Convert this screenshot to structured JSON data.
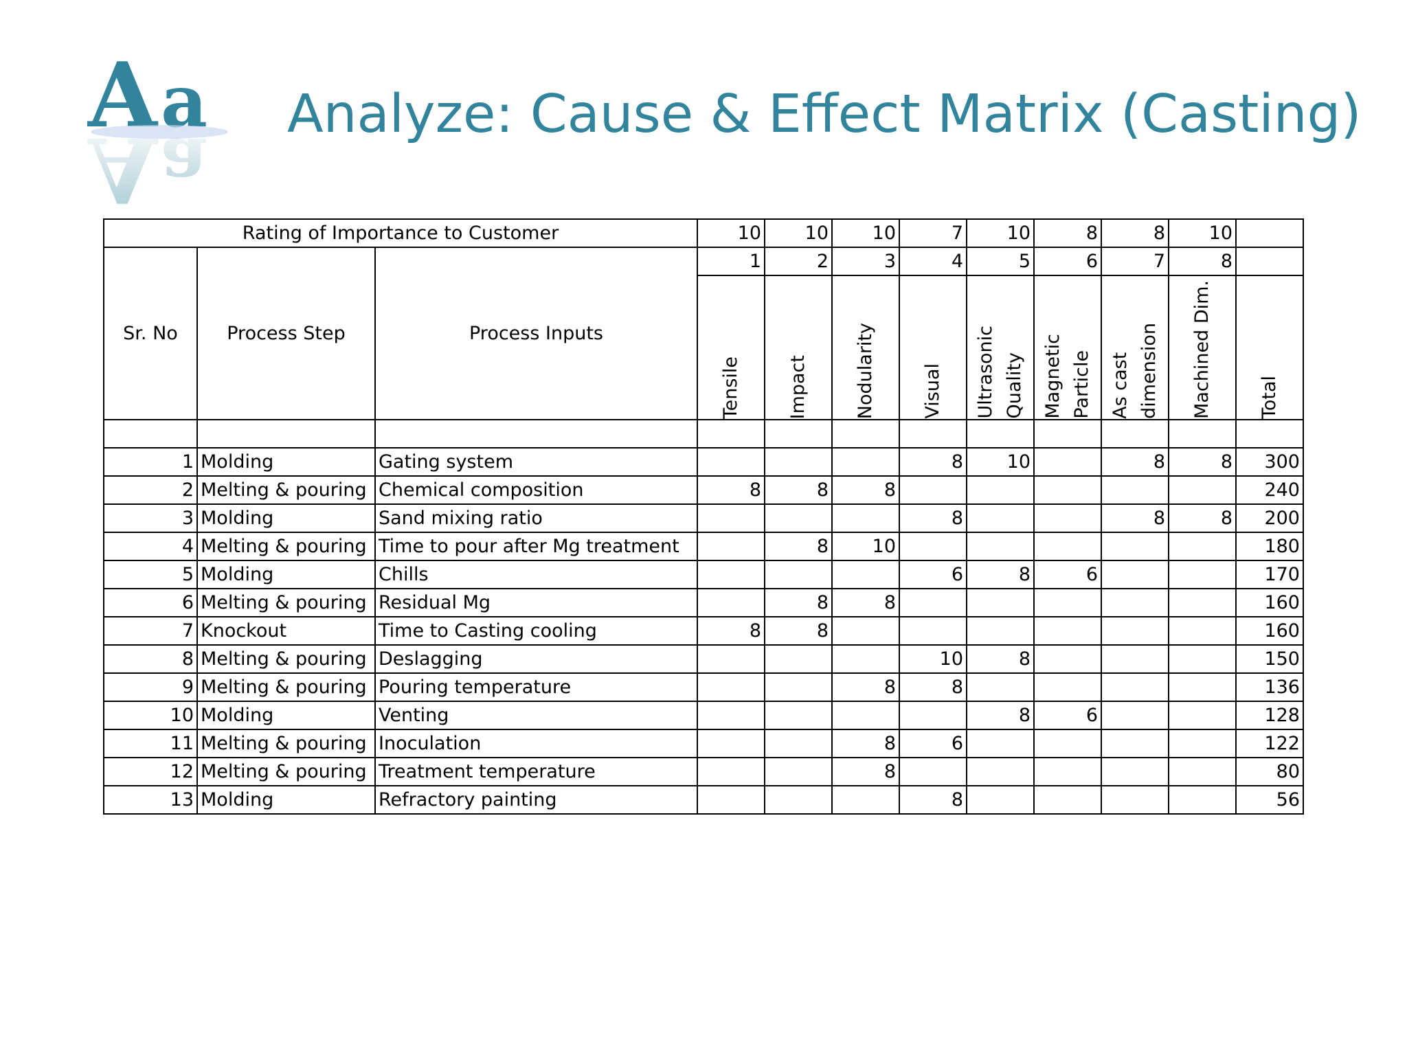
{
  "title": "Analyze: Cause & Effect Matrix (Casting)",
  "logo": {
    "text": "Aa",
    "color": "#31849b"
  },
  "header": {
    "rating_label": "Rating of Importance to Customer",
    "ratings": [
      "10",
      "10",
      "10",
      "7",
      "10",
      "8",
      "8",
      "10"
    ],
    "indices": [
      "1",
      "2",
      "3",
      "4",
      "5",
      "6",
      "7",
      "8"
    ],
    "sr_no": "Sr. No",
    "process_step": "Process Step",
    "process_inputs": "Process Inputs",
    "outputs": [
      "Tensile",
      "Impact",
      "Nodularity",
      "Visual",
      "Ultrasonic\nQuality",
      "Magnetic\nParticle",
      "As cast\ndimension",
      "Machined Dim."
    ],
    "total": "Total"
  },
  "rows": [
    {
      "sr": "1",
      "step": "Molding",
      "input": "Gating system",
      "scores": [
        "",
        "",
        "",
        "8",
        "10",
        "",
        "8",
        "8"
      ],
      "total": "300"
    },
    {
      "sr": "2",
      "step": "Melting & pouring",
      "input": "Chemical composition",
      "scores": [
        "8",
        "8",
        "8",
        "",
        "",
        "",
        "",
        ""
      ],
      "total": "240"
    },
    {
      "sr": "3",
      "step": "Molding",
      "input": "Sand mixing ratio",
      "scores": [
        "",
        "",
        "",
        "8",
        "",
        "",
        "8",
        "8"
      ],
      "total": "200"
    },
    {
      "sr": "4",
      "step": "Melting & pouring",
      "input": "Time to pour after Mg treatment",
      "scores": [
        "",
        "8",
        "10",
        "",
        "",
        "",
        "",
        ""
      ],
      "total": "180"
    },
    {
      "sr": "5",
      "step": "Molding",
      "input": "Chills",
      "scores": [
        "",
        "",
        "",
        "6",
        "8",
        "6",
        "",
        ""
      ],
      "total": "170"
    },
    {
      "sr": "6",
      "step": "Melting & pouring",
      "input": "Residual Mg",
      "scores": [
        "",
        "8",
        "8",
        "",
        "",
        "",
        "",
        ""
      ],
      "total": "160"
    },
    {
      "sr": "7",
      "step": "Knockout",
      "input": "Time to Casting cooling",
      "scores": [
        "8",
        "8",
        "",
        "",
        "",
        "",
        "",
        ""
      ],
      "total": "160"
    },
    {
      "sr": "8",
      "step": "Melting & pouring",
      "input": "Deslagging",
      "scores": [
        "",
        "",
        "",
        "10",
        "8",
        "",
        "",
        ""
      ],
      "total": "150"
    },
    {
      "sr": "9",
      "step": "Melting & pouring",
      "input": "Pouring temperature",
      "scores": [
        "",
        "",
        "8",
        "8",
        "",
        "",
        "",
        ""
      ],
      "total": "136"
    },
    {
      "sr": "10",
      "step": "Molding",
      "input": "Venting",
      "scores": [
        "",
        "",
        "",
        "",
        "8",
        "6",
        "",
        ""
      ],
      "total": "128"
    },
    {
      "sr": "11",
      "step": "Melting & pouring",
      "input": "Inoculation",
      "scores": [
        "",
        "",
        "8",
        "6",
        "",
        "",
        "",
        ""
      ],
      "total": "122"
    },
    {
      "sr": "12",
      "step": "Melting & pouring",
      "input": "Treatment temperature",
      "scores": [
        "",
        "",
        "8",
        "",
        "",
        "",
        "",
        ""
      ],
      "total": "80"
    },
    {
      "sr": "13",
      "step": "Molding",
      "input": "Refractory painting",
      "scores": [
        "",
        "",
        "",
        "8",
        "",
        "",
        "",
        ""
      ],
      "total": "56"
    }
  ]
}
